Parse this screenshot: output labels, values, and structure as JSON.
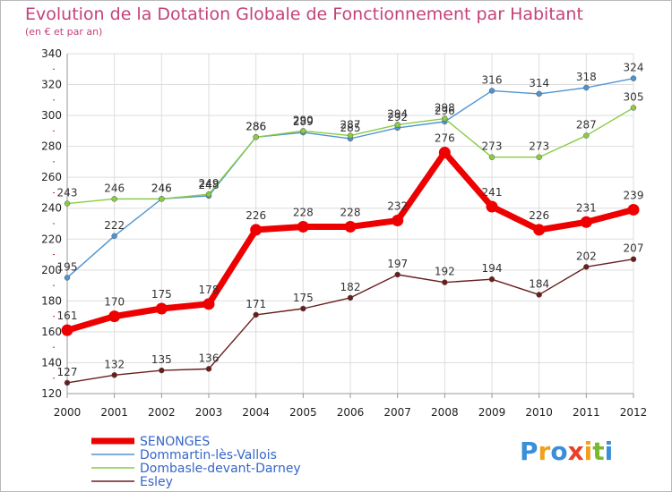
{
  "header": {
    "title": "Evolution de la Dotation Globale de Fonctionnement par Habitant",
    "subtitle": "(en € et par an)"
  },
  "logo": {
    "text": "Proxiti",
    "colors": [
      "#3a8fd8",
      "#f0a020",
      "#3a8fd8",
      "#e8402a",
      "#f0a020",
      "#7ab830",
      "#3a8fd8"
    ]
  },
  "chart_data": {
    "type": "line",
    "x": [
      "2000",
      "2001",
      "2002",
      "2003",
      "2004",
      "2005",
      "2006",
      "2007",
      "2008",
      "2009",
      "2010",
      "2011",
      "2012"
    ],
    "ylim": [
      120,
      340
    ],
    "yticks": [
      120,
      140,
      160,
      180,
      200,
      220,
      240,
      260,
      280,
      300,
      320,
      340
    ],
    "grid": true,
    "legend_position": "bottom-left",
    "series": [
      {
        "name": "SENONGES",
        "color": "#ee0000",
        "highlight": true,
        "values": [
          161,
          170,
          175,
          178,
          226,
          228,
          228,
          232,
          276,
          241,
          226,
          231,
          239
        ]
      },
      {
        "name": "Dommartin-lès-Vallois",
        "color": "#4f93d0",
        "values": [
          195,
          222,
          246,
          248,
          286,
          289,
          285,
          292,
          296,
          316,
          314,
          318,
          324
        ]
      },
      {
        "name": "Dombasle-devant-Darney",
        "color": "#88cc44",
        "values": [
          243,
          246,
          246,
          249,
          286,
          290,
          287,
          294,
          298,
          273,
          273,
          287,
          305
        ]
      },
      {
        "name": "Esley",
        "color": "#6a1d1d",
        "values": [
          127,
          132,
          135,
          136,
          171,
          175,
          182,
          197,
          192,
          194,
          184,
          202,
          207
        ]
      }
    ]
  }
}
